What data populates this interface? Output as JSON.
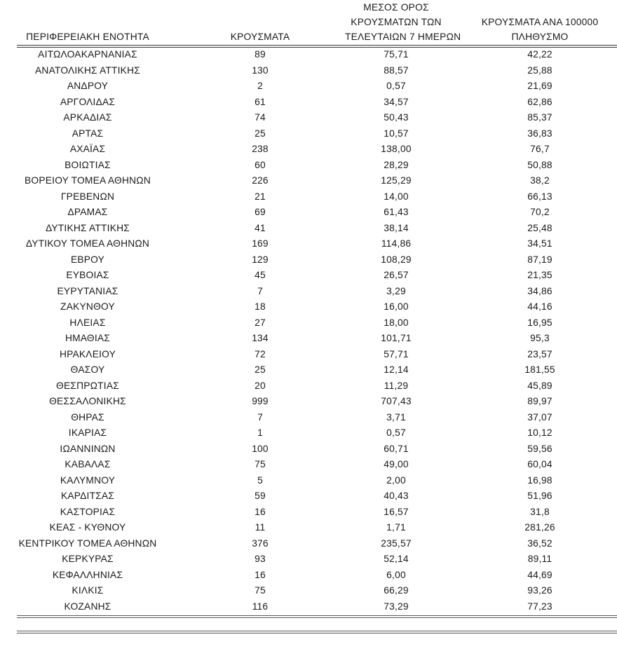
{
  "table": {
    "header": {
      "region": "ΠΕΡΙΦΕΡΕΙΑΚΗ ΕΝΟΤΗΤΑ",
      "cases": "ΚΡΟΥΣΜΑΤΑ",
      "avg7_line1": "ΜΕΣΟΣ ΟΡΟΣ",
      "avg7_line2": "ΚΡΟΥΣΜΑΤΩΝ ΤΩΝ",
      "avg7_line3": "ΤΕΛΕΥΤΑΙΩΝ 7 ΗΜΕΡΩΝ",
      "per100k_line1": "ΚΡΟΥΣΜΑΤΑ ΑΝΑ 100000",
      "per100k_line2": "ΠΛΗΘΥΣΜΟ"
    },
    "rows": [
      [
        "ΑΙΤΩΛΟΑΚΑΡΝΑΝΙΑΣ",
        "89",
        "75,71",
        "42,22"
      ],
      [
        "ΑΝΑΤΟΛΙΚΗΣ ΑΤΤΙΚΗΣ",
        "130",
        "88,57",
        "25,88"
      ],
      [
        "ΑΝΔΡΟΥ",
        "2",
        "0,57",
        "21,69"
      ],
      [
        "ΑΡΓΟΛΙΔΑΣ",
        "61",
        "34,57",
        "62,86"
      ],
      [
        "ΑΡΚΑΔΙΑΣ",
        "74",
        "50,43",
        "85,37"
      ],
      [
        "ΑΡΤΑΣ",
        "25",
        "10,57",
        "36,83"
      ],
      [
        "ΑΧΑΪΑΣ",
        "238",
        "138,00",
        "76,7"
      ],
      [
        "ΒΟΙΩΤΙΑΣ",
        "60",
        "28,29",
        "50,88"
      ],
      [
        "ΒΟΡΕΙΟΥ ΤΟΜΕΑ ΑΘΗΝΩΝ",
        "226",
        "125,29",
        "38,2"
      ],
      [
        "ΓΡΕΒΕΝΩΝ",
        "21",
        "14,00",
        "66,13"
      ],
      [
        "ΔΡΑΜΑΣ",
        "69",
        "61,43",
        "70,2"
      ],
      [
        "ΔΥΤΙΚΗΣ ΑΤΤΙΚΗΣ",
        "41",
        "38,14",
        "25,48"
      ],
      [
        "ΔΥΤΙΚΟΥ ΤΟΜΕΑ ΑΘΗΝΩΝ",
        "169",
        "114,86",
        "34,51"
      ],
      [
        "ΕΒΡΟΥ",
        "129",
        "108,29",
        "87,19"
      ],
      [
        "ΕΥΒΟΙΑΣ",
        "45",
        "26,57",
        "21,35"
      ],
      [
        "ΕΥΡΥΤΑΝΙΑΣ",
        "7",
        "3,29",
        "34,86"
      ],
      [
        "ΖΑΚΥΝΘΟΥ",
        "18",
        "16,00",
        "44,16"
      ],
      [
        "ΗΛΕΙΑΣ",
        "27",
        "18,00",
        "16,95"
      ],
      [
        "ΗΜΑΘΙΑΣ",
        "134",
        "101,71",
        "95,3"
      ],
      [
        "ΗΡΑΚΛΕΙΟΥ",
        "72",
        "57,71",
        "23,57"
      ],
      [
        "ΘΑΣΟΥ",
        "25",
        "12,14",
        "181,55"
      ],
      [
        "ΘΕΣΠΡΩΤΙΑΣ",
        "20",
        "11,29",
        "45,89"
      ],
      [
        "ΘΕΣΣΑΛΟΝΙΚΗΣ",
        "999",
        "707,43",
        "89,97"
      ],
      [
        "ΘΗΡΑΣ",
        "7",
        "3,71",
        "37,07"
      ],
      [
        "ΙΚΑΡΙΑΣ",
        "1",
        "0,57",
        "10,12"
      ],
      [
        "ΙΩΑΝΝΙΝΩΝ",
        "100",
        "60,71",
        "59,56"
      ],
      [
        "ΚΑΒΑΛΑΣ",
        "75",
        "49,00",
        "60,04"
      ],
      [
        "ΚΑΛΥΜΝΟΥ",
        "5",
        "2,00",
        "16,98"
      ],
      [
        "ΚΑΡΔΙΤΣΑΣ",
        "59",
        "40,43",
        "51,96"
      ],
      [
        "ΚΑΣΤΟΡΙΑΣ",
        "16",
        "16,57",
        "31,8"
      ],
      [
        "ΚΕΑΣ - ΚΥΘΝΟΥ",
        "11",
        "1,71",
        "281,26"
      ],
      [
        "ΚΕΝΤΡΙΚΟΥ ΤΟΜΕΑ ΑΘΗΝΩΝ",
        "376",
        "235,57",
        "36,52"
      ],
      [
        "ΚΕΡΚΥΡΑΣ",
        "93",
        "52,14",
        "89,11"
      ],
      [
        "ΚΕΦΑΛΛΗΝΙΑΣ",
        "16",
        "6,00",
        "44,69"
      ],
      [
        "ΚΙΛΚΙΣ",
        "75",
        "66,29",
        "93,26"
      ],
      [
        "ΚΟΖΑΝΗΣ",
        "116",
        "73,29",
        "77,23"
      ]
    ]
  }
}
